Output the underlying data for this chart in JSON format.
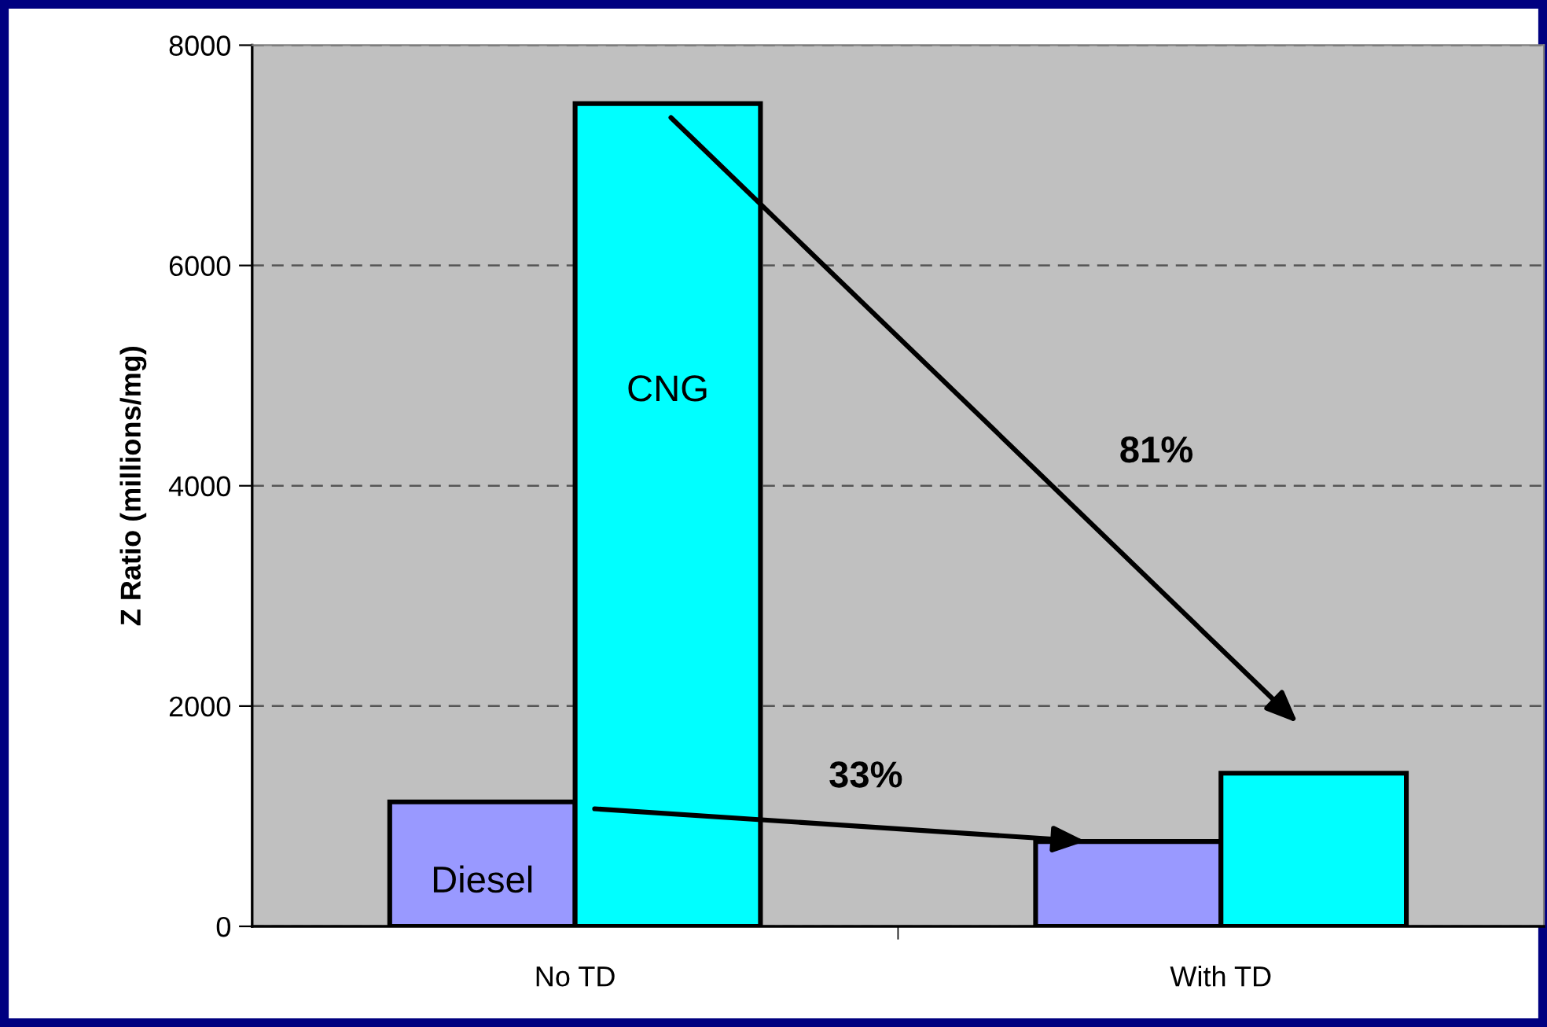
{
  "chart_data": {
    "type": "bar",
    "ylabel": "Z Ratio (millions/mg)",
    "categories": [
      "No TD",
      "With TD"
    ],
    "series": [
      {
        "name": "Diesel",
        "color": "#9999ff",
        "values": [
          1130,
          770
        ]
      },
      {
        "name": "CNG",
        "color": "#00ffff",
        "values": [
          7470,
          1390
        ]
      }
    ],
    "ylim": [
      0,
      8000
    ],
    "yticks": [
      0,
      2000,
      4000,
      6000,
      8000
    ],
    "grid": "y",
    "legend": false,
    "annotations": [
      "81%",
      "33%"
    ]
  }
}
